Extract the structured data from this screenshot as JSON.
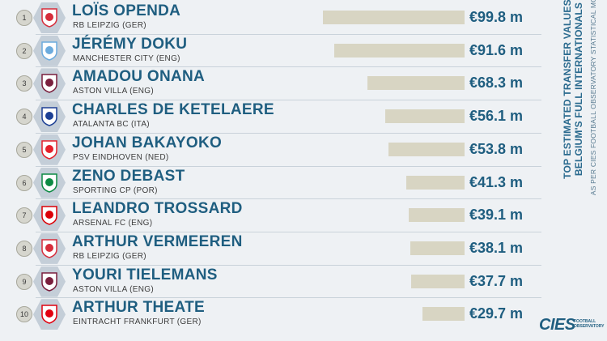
{
  "side_title_1": "TOP ESTIMATED TRANSFER VALUES",
  "side_title_2": "BELGIUM'S FULL INTERNATIONALS",
  "side_subtitle": "AS PER CIES FOOTBALL OBSERVATORY STATISTICAL MODEL",
  "logo": {
    "main": "CIES",
    "sub_line1": "FOOTBALL",
    "sub_line2": "OBSERVATORY"
  },
  "chart_data": {
    "type": "bar",
    "orientation": "horizontal",
    "unit": "€ m",
    "xlim": [
      0,
      99.8
    ],
    "players": [
      {
        "rank": "1",
        "name": "LOÏS OPENDA",
        "club": "RB LEIPZIG (GER)",
        "value": 99.8,
        "value_label": "€99.8 m",
        "crest": "rb-leipzig-crest-icon",
        "crest_color": "#d62d3b"
      },
      {
        "rank": "2",
        "name": "JÉRÉMY DOKU",
        "club": "MANCHESTER CITY (ENG)",
        "value": 91.6,
        "value_label": "€91.6 m",
        "crest": "manchester-city-crest-icon",
        "crest_color": "#6cabdd"
      },
      {
        "rank": "3",
        "name": "AMADOU ONANA",
        "club": "ASTON VILLA (ENG)",
        "value": 68.3,
        "value_label": "€68.3 m",
        "crest": "aston-villa-crest-icon",
        "crest_color": "#7a1f3d"
      },
      {
        "rank": "4",
        "name": "CHARLES DE KETELAERE",
        "club": "ATALANTA BC (ITA)",
        "value": 56.1,
        "value_label": "€56.1 m",
        "crest": "atalanta-crest-icon",
        "crest_color": "#1c3f94"
      },
      {
        "rank": "5",
        "name": "JOHAN BAKAYOKO",
        "club": "PSV EINDHOVEN (NED)",
        "value": 53.8,
        "value_label": "€53.8 m",
        "crest": "psv-crest-icon",
        "crest_color": "#e4202b"
      },
      {
        "rank": "6",
        "name": "ZENO DEBAST",
        "club": "SPORTING CP (POR)",
        "value": 41.3,
        "value_label": "€41.3 m",
        "crest": "sporting-cp-crest-icon",
        "crest_color": "#0d8a43"
      },
      {
        "rank": "7",
        "name": "LEANDRO TROSSARD",
        "club": "ARSENAL FC (ENG)",
        "value": 39.1,
        "value_label": "€39.1 m",
        "crest": "arsenal-crest-icon",
        "crest_color": "#db0007"
      },
      {
        "rank": "8",
        "name": "ARTHUR VERMEEREN",
        "club": "RB LEIPZIG (GER)",
        "value": 38.1,
        "value_label": "€38.1 m",
        "crest": "rb-leipzig-crest-icon",
        "crest_color": "#d62d3b"
      },
      {
        "rank": "9",
        "name": "YOURI TIELEMANS",
        "club": "ASTON VILLA (ENG)",
        "value": 37.7,
        "value_label": "€37.7 m",
        "crest": "aston-villa-crest-icon",
        "crest_color": "#7a1f3d"
      },
      {
        "rank": "10",
        "name": "ARTHUR THEATE",
        "club": "EINTRACHT FRANKFURT (GER)",
        "value": 29.7,
        "value_label": "€29.7 m",
        "crest": "eintracht-frankfurt-crest-icon",
        "crest_color": "#e1000f"
      }
    ]
  }
}
